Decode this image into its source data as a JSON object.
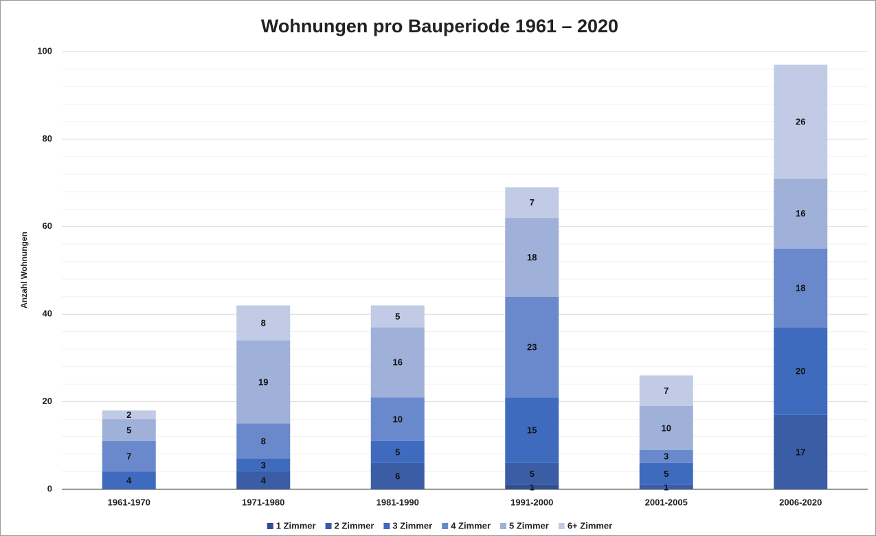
{
  "chart_data": {
    "type": "stacked_bar",
    "title": "Wohnungen pro Bauperiode 1961 – 2020",
    "y_label": "Anzahl Wohnungen",
    "categories": [
      "1961-1970",
      "1971-1980",
      "1981-1990",
      "1991-2000",
      "2001-2005",
      "2006-2020"
    ],
    "series": [
      {
        "name": "1 Zimmer",
        "color": "#2f4f8f",
        "values": [
          null,
          null,
          null,
          1,
          null,
          null
        ]
      },
      {
        "name": "2 Zimmer",
        "color": "#3a5da6",
        "values": [
          null,
          4,
          6,
          5,
          1,
          17
        ]
      },
      {
        "name": "3 Zimmer",
        "color": "#3f6bbf",
        "values": [
          4,
          3,
          5,
          15,
          5,
          20
        ]
      },
      {
        "name": "4 Zimmer",
        "color": "#6a89cc",
        "values": [
          7,
          8,
          10,
          23,
          3,
          18
        ]
      },
      {
        "name": "5 Zimmer",
        "color": "#9fb0d9",
        "values": [
          5,
          19,
          16,
          18,
          10,
          16
        ]
      },
      {
        "name": "6+ Zimmer",
        "color": "#c1cbe6",
        "values": [
          2,
          8,
          5,
          7,
          7,
          26
        ]
      }
    ],
    "ylim": [
      0,
      100
    ],
    "yticks": [
      0,
      20,
      40,
      60,
      80,
      100
    ],
    "minor_yticks": [
      4,
      8,
      12,
      16,
      24,
      28,
      32,
      36,
      44,
      48,
      52,
      56,
      64,
      68,
      72,
      76,
      84,
      88,
      92,
      96
    ],
    "grid": true,
    "legend": "bottom"
  }
}
